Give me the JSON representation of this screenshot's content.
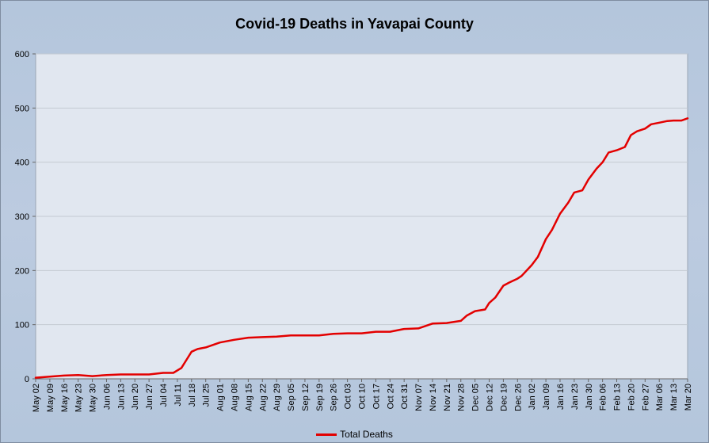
{
  "chart_data": {
    "type": "line",
    "title": "Covid-19 Deaths in Yavapai County",
    "xlabel": "",
    "ylabel": "",
    "ylim": [
      0,
      600
    ],
    "yticks": [
      0,
      100,
      200,
      300,
      400,
      500,
      600
    ],
    "grid": true,
    "legend_position": "bottom",
    "line_color": "#e30000",
    "plot_background": "#e1e7f0",
    "x_tick_labels": [
      "May 02",
      "May 09",
      "May 16",
      "May 23",
      "May 30",
      "Jun 06",
      "Jun 13",
      "Jun 20",
      "Jun 27",
      "Jul 04",
      "Jul 11",
      "Jul 18",
      "Jul 25",
      "Aug 01",
      "Aug 08",
      "Aug 15",
      "Aug 22",
      "Aug 29",
      "Sep 05",
      "Sep 12",
      "Sep 19",
      "Sep 26",
      "Oct 03",
      "Oct 10",
      "Oct 17",
      "Oct 24",
      "Oct 31",
      "Nov 07",
      "Nov 14",
      "Nov 21",
      "Nov 28",
      "Dec 05",
      "Dec 12",
      "Dec 19",
      "Dec 26",
      "Jan 02",
      "Jan 09",
      "Jan 16",
      "Jan 23",
      "Jan 30",
      "Feb 06",
      "Feb 13",
      "Feb 20",
      "Feb 27",
      "Mar 06",
      "Mar 13",
      "Mar 20"
    ],
    "series": [
      {
        "name": "Total Deaths",
        "x": [
          "May 02",
          "May 09",
          "May 16",
          "May 23",
          "May 30",
          "Jun 06",
          "Jun 13",
          "Jun 20",
          "Jun 27",
          "Jul 04",
          "Jul 09",
          "Jul 13",
          "Jul 16",
          "Jul 18",
          "Jul 21",
          "Jul 25",
          "Aug 01",
          "Aug 08",
          "Aug 15",
          "Aug 22",
          "Aug 29",
          "Sep 05",
          "Sep 12",
          "Sep 19",
          "Sep 26",
          "Oct 03",
          "Oct 10",
          "Oct 17",
          "Oct 24",
          "Oct 31",
          "Nov 07",
          "Nov 14",
          "Nov 21",
          "Nov 28",
          "Dec 01",
          "Dec 05",
          "Dec 10",
          "Dec 12",
          "Dec 15",
          "Dec 19",
          "Dec 22",
          "Dec 26",
          "Dec 28",
          "Jan 02",
          "Jan 05",
          "Jan 09",
          "Jan 12",
          "Jan 16",
          "Jan 20",
          "Jan 23",
          "Jan 27",
          "Jan 30",
          "Feb 03",
          "Feb 06",
          "Feb 09",
          "Feb 13",
          "Feb 17",
          "Feb 20",
          "Feb 23",
          "Feb 27",
          "Mar 02",
          "Mar 06",
          "Mar 10",
          "Mar 13",
          "Mar 17",
          "Mar 20"
        ],
        "values": [
          2,
          4,
          6,
          7,
          5,
          7,
          8,
          8,
          8,
          11,
          11,
          20,
          38,
          50,
          55,
          58,
          67,
          72,
          76,
          77,
          78,
          80,
          80,
          80,
          83,
          84,
          84,
          87,
          87,
          92,
          93,
          102,
          103,
          107,
          117,
          125,
          128,
          140,
          150,
          172,
          178,
          185,
          190,
          210,
          225,
          258,
          275,
          305,
          325,
          344,
          348,
          368,
          388,
          400,
          418,
          422,
          428,
          450,
          457,
          462,
          470,
          473,
          476,
          477,
          477,
          481
        ]
      }
    ]
  }
}
